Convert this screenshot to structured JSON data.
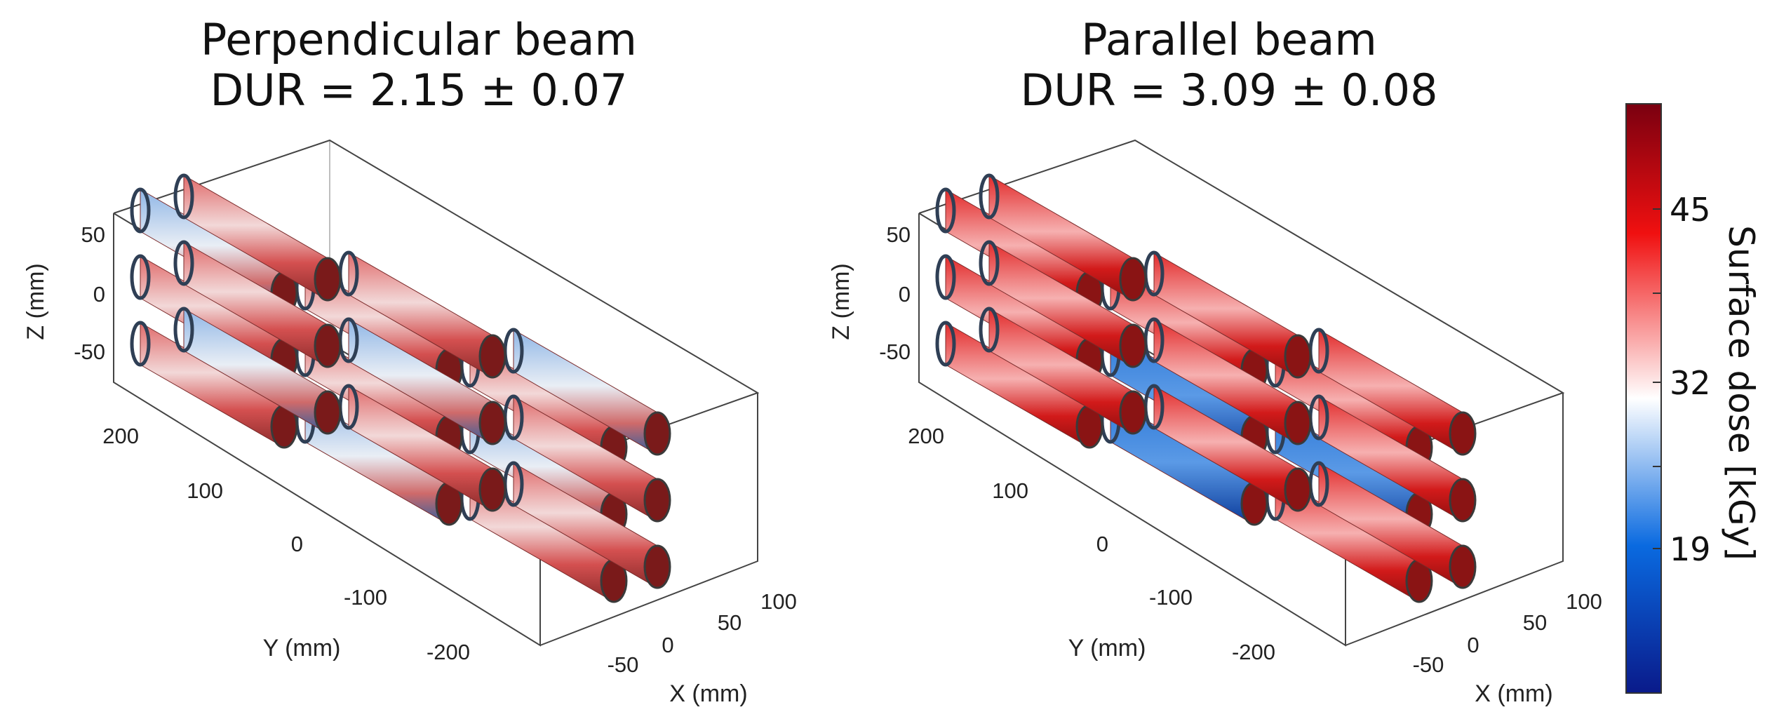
{
  "panels": [
    {
      "title_line1": "Perpendicular beam",
      "title_line2": "DUR = 2.15 ± 0.07",
      "z_label": "Z (mm)",
      "y_label": "Y (mm)",
      "x_label": "X (mm)",
      "z_ticks": [
        "50",
        "0",
        "-50"
      ],
      "y_ticks": [
        "200",
        "100",
        "0",
        "-100",
        "-200"
      ],
      "x_ticks": [
        "-50",
        "0",
        "50",
        "100"
      ]
    },
    {
      "title_line1": "Parallel beam",
      "title_line2": "DUR = 3.09 ± 0.08",
      "z_label": "Z (mm)",
      "y_label": "Y (mm)",
      "x_label": "X (mm)",
      "z_ticks": [
        "50",
        "0",
        "-50"
      ],
      "y_ticks": [
        "200",
        "100",
        "0",
        "-100",
        "-200"
      ],
      "x_ticks": [
        "-50",
        "0",
        "50",
        "100"
      ]
    }
  ],
  "colorbar": {
    "label": "Surface dose [kGy]",
    "ticks": [
      "45",
      "32",
      "19"
    ],
    "colors": [
      "#0a1a8a",
      "#0a6ae0",
      "#ffffff",
      "#f01010",
      "#7a0010"
    ]
  }
}
